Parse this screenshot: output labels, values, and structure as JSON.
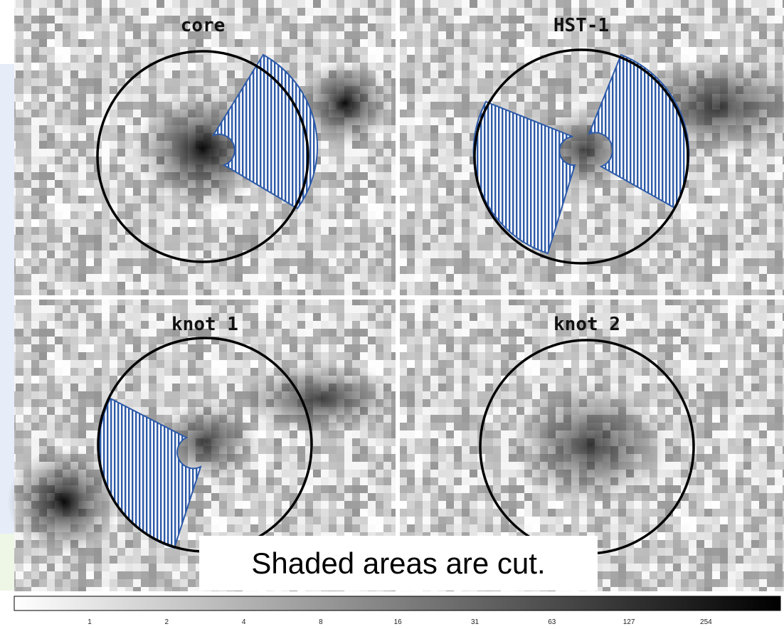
{
  "panels": [
    {
      "label": "core"
    },
    {
      "label": "HST-1"
    },
    {
      "label": "knot 1"
    },
    {
      "label": "knot 2"
    }
  ],
  "annotation": "Shaded areas are cut.",
  "colorbar": {
    "ticks": [
      1,
      2,
      4,
      8,
      16,
      31,
      63,
      127,
      254
    ]
  }
}
